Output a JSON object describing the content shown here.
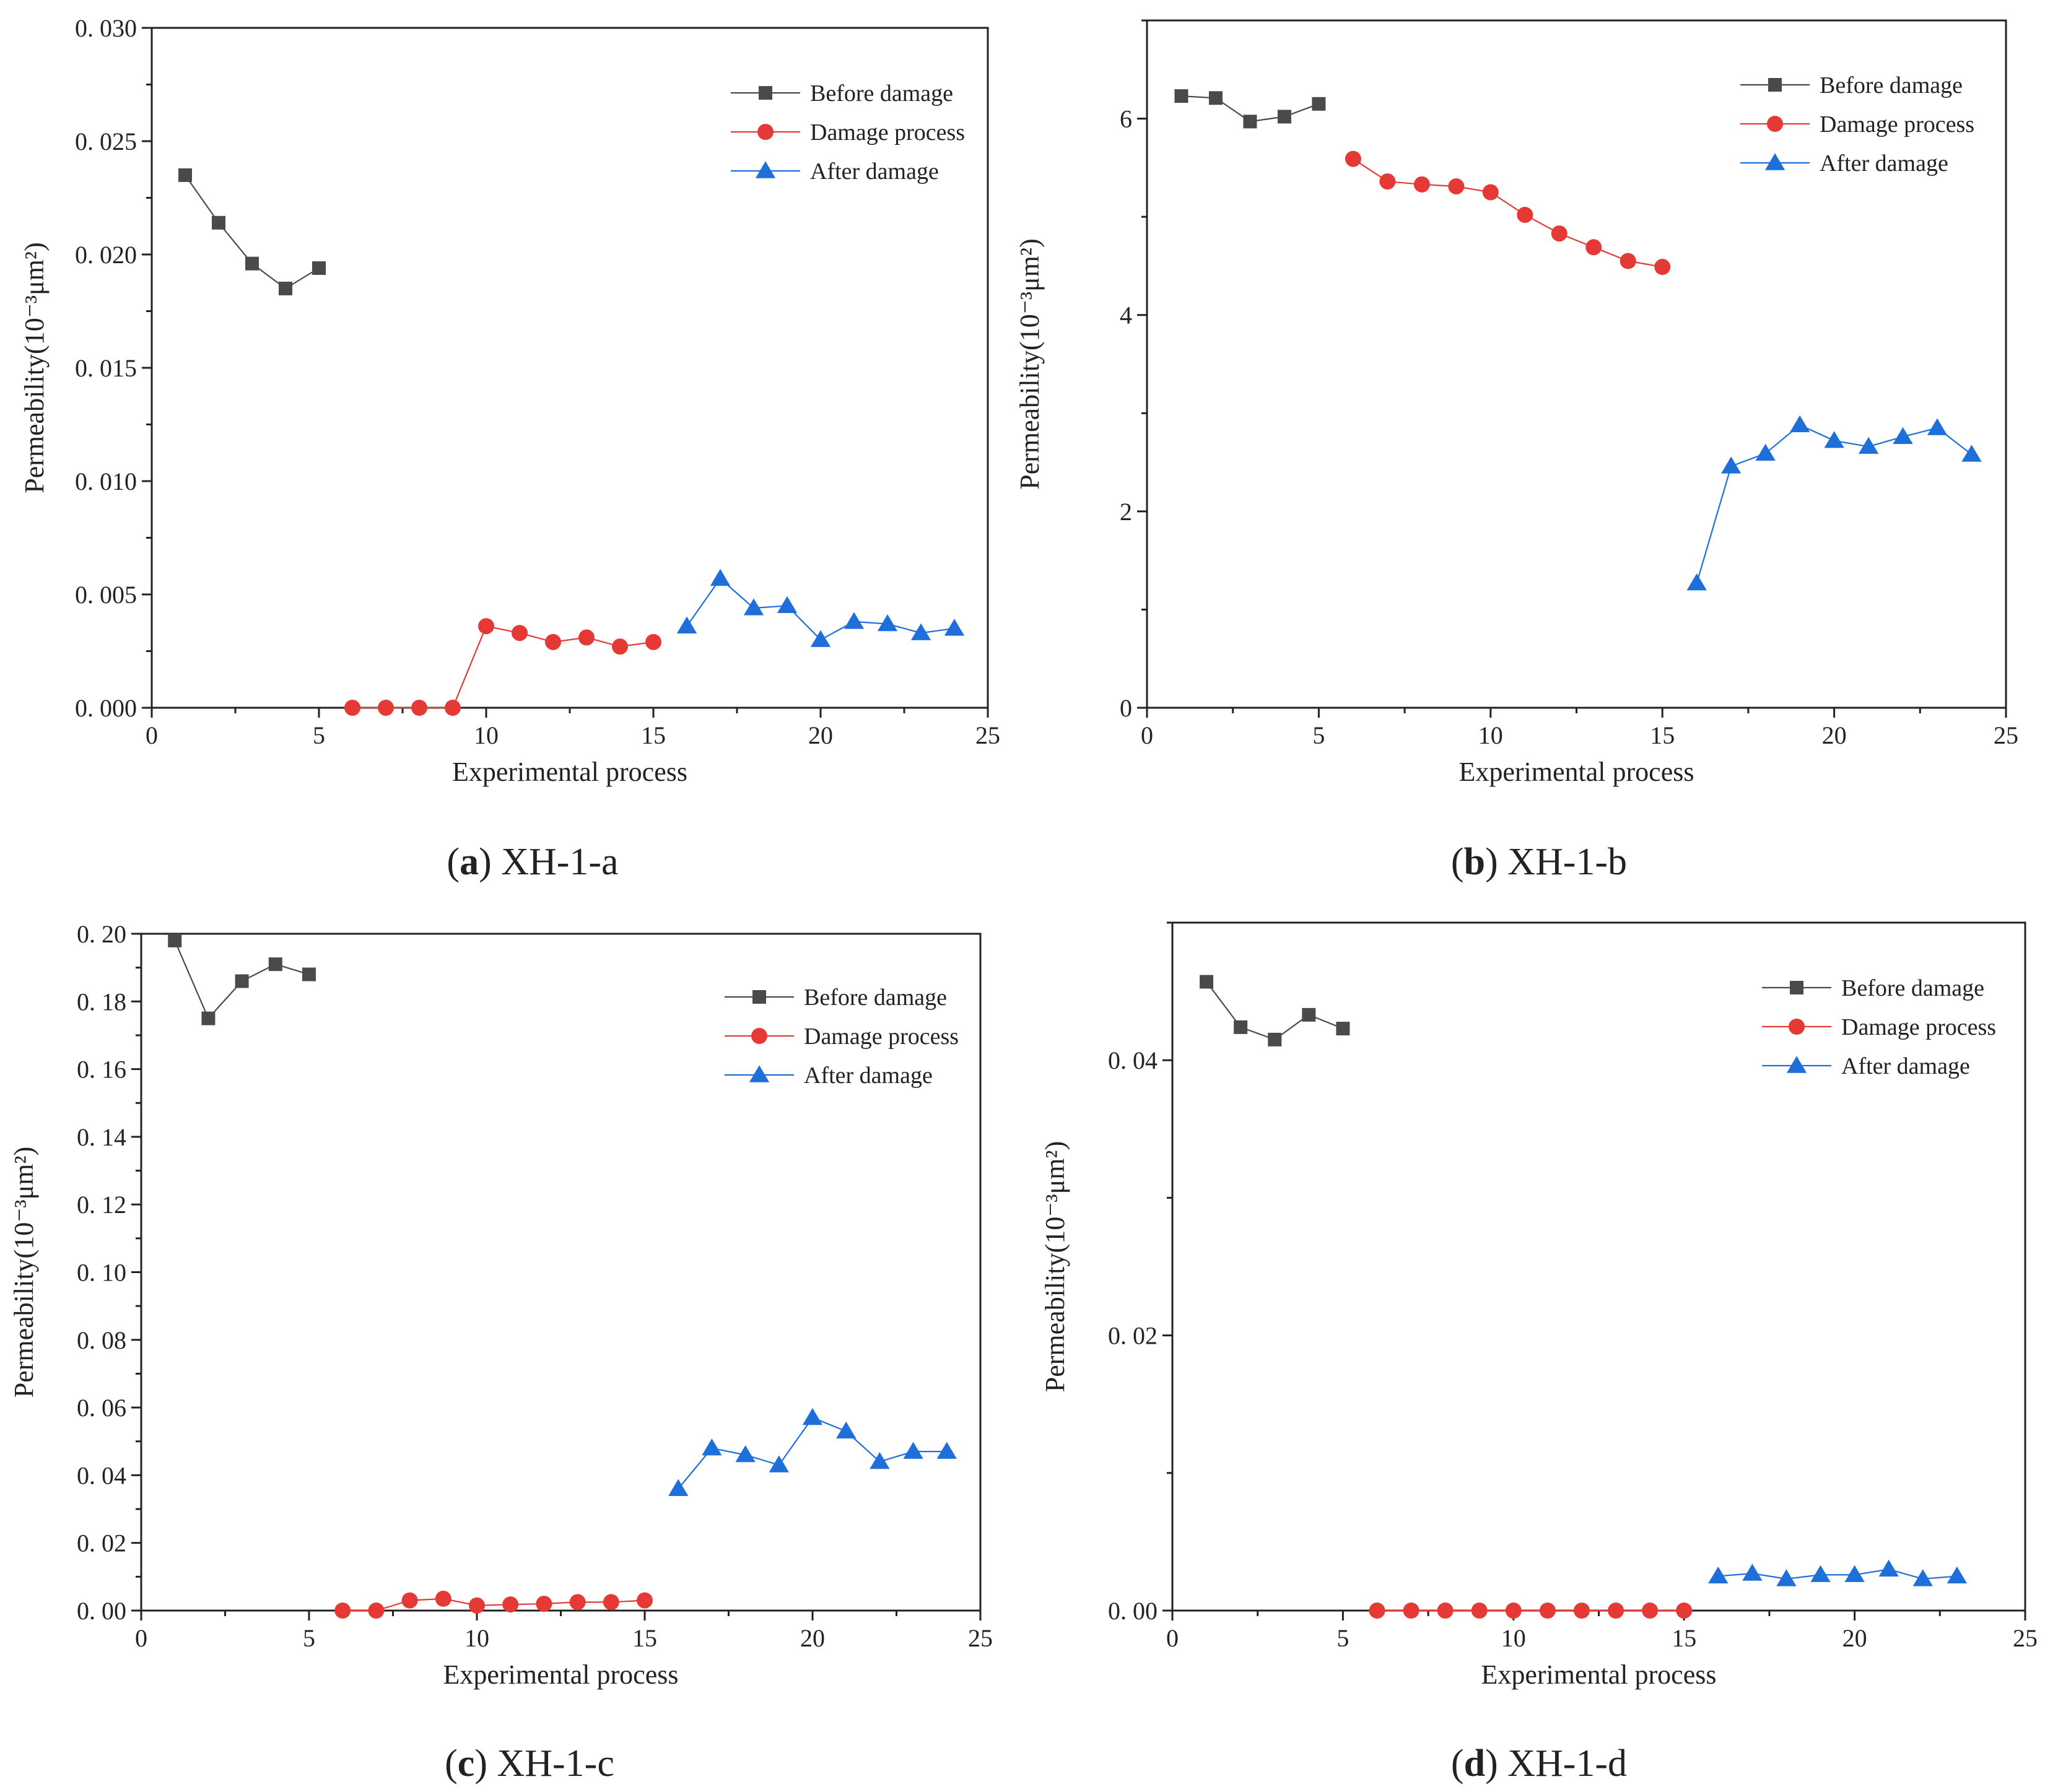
{
  "chart_data": [
    {
      "type": "line",
      "caption": {
        "letter": "a",
        "text": "XH-1-a"
      },
      "xlabel": "Experimental process",
      "ylabel": "Permeability(10⁻³μm²)",
      "xlim": [
        0,
        25
      ],
      "ylim": [
        0,
        0.03
      ],
      "xticks": [
        0,
        5,
        10,
        15,
        20,
        25
      ],
      "yticks": [
        0.0,
        0.005,
        0.01,
        0.015,
        0.02,
        0.025,
        0.03
      ],
      "ytick_labels": [
        "0. 000",
        "0. 005",
        "0. 010",
        "0. 015",
        "0. 020",
        "0. 025",
        "0. 030"
      ],
      "grid": false,
      "legend": "top-right",
      "series": [
        {
          "name": "Before damage",
          "color": "#4a4a4a",
          "marker": "square",
          "x": [
            1,
            2,
            3,
            4,
            5
          ],
          "y": [
            0.0235,
            0.0214,
            0.0196,
            0.0185,
            0.0194
          ]
        },
        {
          "name": "Damage process",
          "color": "#e53935",
          "marker": "circle",
          "x": [
            6,
            7,
            8,
            9,
            10,
            11,
            12,
            13,
            14,
            15
          ],
          "y": [
            0.0,
            0.0,
            0.0,
            0.0,
            0.0036,
            0.0033,
            0.0029,
            0.0031,
            0.0027,
            0.0029
          ]
        },
        {
          "name": "After damage",
          "color": "#1e6fd9",
          "marker": "triangle",
          "x": [
            16,
            17,
            18,
            19,
            20,
            21,
            22,
            23,
            24
          ],
          "y": [
            0.0036,
            0.0057,
            0.0044,
            0.0045,
            0.003,
            0.0038,
            0.0037,
            0.0033,
            0.0035
          ]
        }
      ]
    },
    {
      "type": "line",
      "caption": {
        "letter": "b",
        "text": "XH-1-b"
      },
      "xlabel": "Experimental process",
      "ylabel": "Permeability(10⁻³μm²)",
      "xlim": [
        0,
        25
      ],
      "ylim": [
        0,
        7
      ],
      "xticks": [
        0,
        5,
        10,
        15,
        20,
        25
      ],
      "yticks": [
        0,
        2,
        4,
        6
      ],
      "ytick_labels": [
        "0",
        "2",
        "4",
        "6"
      ],
      "grid": false,
      "legend": "top-right",
      "series": [
        {
          "name": "Before damage",
          "color": "#4a4a4a",
          "marker": "square",
          "x": [
            1,
            2,
            3,
            4,
            5
          ],
          "y": [
            6.23,
            6.21,
            5.97,
            6.02,
            6.15
          ]
        },
        {
          "name": "Damage process",
          "color": "#e53935",
          "marker": "circle",
          "x": [
            6,
            7,
            8,
            9,
            10,
            11,
            12,
            13,
            14,
            15
          ],
          "y": [
            5.59,
            5.36,
            5.33,
            5.31,
            5.25,
            5.02,
            4.83,
            4.69,
            4.55,
            4.49
          ]
        },
        {
          "name": "After damage",
          "color": "#1e6fd9",
          "marker": "triangle",
          "x": [
            16,
            17,
            18,
            19,
            20,
            21,
            22,
            23,
            24
          ],
          "y": [
            1.27,
            2.46,
            2.59,
            2.88,
            2.72,
            2.66,
            2.76,
            2.85,
            2.58
          ]
        }
      ]
    },
    {
      "type": "line",
      "caption": {
        "letter": "c",
        "text": "XH-1-c"
      },
      "xlabel": "Experimental process",
      "ylabel": "Permeability(10⁻³μm²)",
      "xlim": [
        0,
        25
      ],
      "ylim": [
        0,
        0.2
      ],
      "xticks": [
        0,
        5,
        10,
        15,
        20,
        25
      ],
      "yticks": [
        0.0,
        0.02,
        0.04,
        0.06,
        0.08,
        0.1,
        0.12,
        0.14,
        0.16,
        0.18,
        0.2
      ],
      "ytick_labels": [
        "0. 00",
        "0. 02",
        "0. 04",
        "0. 06",
        "0. 08",
        "0. 10",
        "0. 12",
        "0. 14",
        "0. 16",
        "0. 18",
        "0. 20"
      ],
      "grid": false,
      "legend": "top-right",
      "series": [
        {
          "name": "Before damage",
          "color": "#4a4a4a",
          "marker": "square",
          "x": [
            1,
            2,
            3,
            4,
            5
          ],
          "y": [
            0.198,
            0.175,
            0.186,
            0.191,
            0.188
          ]
        },
        {
          "name": "Damage process",
          "color": "#e53935",
          "marker": "circle",
          "x": [
            6,
            7,
            8,
            9,
            10,
            11,
            12,
            13,
            14,
            15
          ],
          "y": [
            0.0,
            0.0,
            0.003,
            0.0035,
            0.0015,
            0.0018,
            0.002,
            0.0025,
            0.0025,
            0.003
          ]
        },
        {
          "name": "After damage",
          "color": "#1e6fd9",
          "marker": "triangle",
          "x": [
            16,
            17,
            18,
            19,
            20,
            21,
            22,
            23,
            24
          ],
          "y": [
            0.036,
            0.048,
            0.046,
            0.043,
            0.057,
            0.053,
            0.044,
            0.047,
            0.047
          ]
        }
      ]
    },
    {
      "type": "line",
      "caption": {
        "letter": "d",
        "text": "XH-1-d"
      },
      "xlabel": "Experimental process",
      "ylabel": "Permeability(10⁻³μm²)",
      "xlim": [
        0,
        25
      ],
      "ylim": [
        0,
        0.05
      ],
      "xticks": [
        0,
        5,
        10,
        15,
        20,
        25
      ],
      "yticks": [
        0.0,
        0.02,
        0.04
      ],
      "ytick_labels": [
        "0. 00",
        "0. 02",
        "0. 04"
      ],
      "grid": false,
      "legend": "top-right",
      "series": [
        {
          "name": "Before damage",
          "color": "#4a4a4a",
          "marker": "square",
          "x": [
            1,
            2,
            3,
            4,
            5
          ],
          "y": [
            0.0457,
            0.0424,
            0.0415,
            0.0433,
            0.0423
          ]
        },
        {
          "name": "Damage process",
          "color": "#e53935",
          "marker": "circle",
          "x": [
            6,
            7,
            8,
            9,
            10,
            11,
            12,
            13,
            14,
            15
          ],
          "y": [
            0.0,
            0.0,
            0.0,
            0.0,
            0.0,
            0.0,
            0.0,
            0.0,
            0.0,
            0.0
          ]
        },
        {
          "name": "After damage",
          "color": "#1e6fd9",
          "marker": "triangle",
          "x": [
            16,
            17,
            18,
            19,
            20,
            21,
            22,
            23
          ],
          "y": [
            0.0025,
            0.0027,
            0.0023,
            0.0026,
            0.0026,
            0.003,
            0.0023,
            0.0025
          ]
        }
      ]
    }
  ]
}
